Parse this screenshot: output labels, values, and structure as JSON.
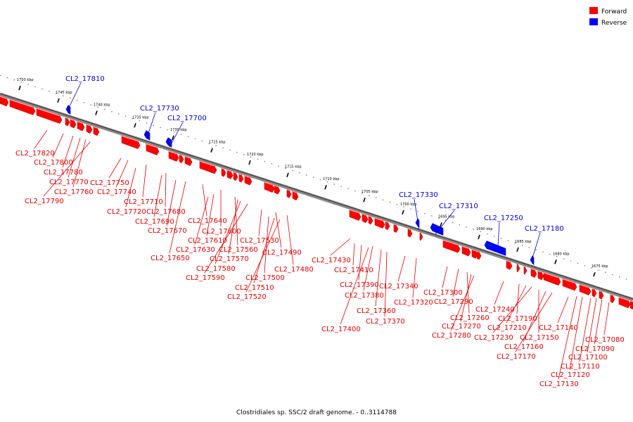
{
  "caption": "Clostridiales sp. SSC/2 draft genome. - 0..3114788",
  "legend": [
    {
      "label": "Forward",
      "color": "#ff0000"
    },
    {
      "label": "Reverse",
      "color": "#0000ff"
    }
  ],
  "colors": {
    "forward": "#ff0000",
    "reverse": "#0000ff",
    "backbone": "#808080",
    "leader_forward": "#e00000",
    "leader_reverse": "#0000cc"
  },
  "scale_ticks": [
    "1750 kbp",
    "1745 kbp",
    "1740 kbp",
    "1735 kbp",
    "1730 kbp",
    "1725 kbp",
    "1720 kbp",
    "1715 kbp",
    "1710 kbp",
    "1705 kbp",
    "1700 kbp",
    "1695 kbp",
    "1690 kbp",
    "1685 kbp",
    "1680 kbp",
    "1675 kbp"
  ],
  "reverse_labels": [
    "CL2_17810",
    "CL2_17730",
    "CL2_17700",
    "CL2_17330",
    "CL2_17310",
    "CL2_17250",
    "CL2_17180"
  ],
  "forward_labels": [
    "CL2_17820",
    "CL2_17800",
    "CL2_17780",
    "CL2_17770",
    "CL2_17760",
    "CL2_17790",
    "CL2_17750",
    "CL2_17740",
    "CL2_17710",
    "CL2_17720",
    "CL2_17680",
    "CL2_17690",
    "CL2_17670",
    "CL2_17640",
    "CL2_17650",
    "CL2_17600",
    "CL2_17610",
    "CL2_17630",
    "CL2_17560",
    "CL2_17570",
    "CL2_17580",
    "CL2_17590",
    "CL2_17530",
    "CL2_17490",
    "CL2_17480",
    "CL2_17500",
    "CL2_17510",
    "CL2_17520",
    "CL2_17430",
    "CL2_17410",
    "CL2_17390",
    "CL2_17380",
    "CL2_17360",
    "CL2_17370",
    "CL2_17400",
    "CL2_17340",
    "CL2_17320",
    "CL2_17300",
    "CL2_17290",
    "CL2_17260",
    "CL2_17270",
    "CL2_17280",
    "CL2_17240",
    "CL2_17190",
    "CL2_17210",
    "CL2_17230",
    "CL2_17150",
    "CL2_17160",
    "CL2_17170",
    "CL2_17140",
    "CL2_17080",
    "CL2_17090",
    "CL2_17100",
    "CL2_17110",
    "CL2_17120",
    "CL2_17130"
  ]
}
